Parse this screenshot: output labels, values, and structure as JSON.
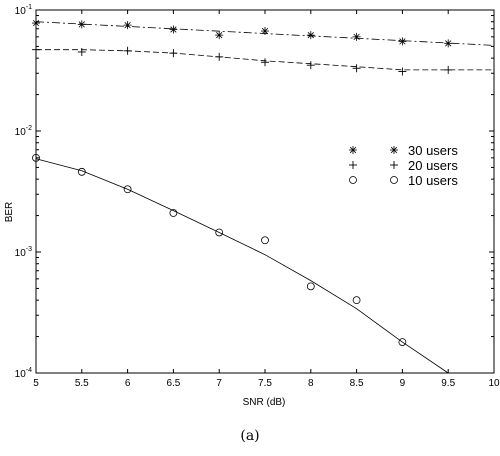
{
  "caption": "(a)",
  "chart_data": {
    "type": "line",
    "xlabel": "SNR (dB)",
    "ylabel": "BER",
    "xlim": [
      5,
      10
    ],
    "ylim": [
      0.0001,
      0.1
    ],
    "yscale": "log",
    "x_ticks": [
      "5",
      "5.5",
      "6",
      "6.5",
      "7",
      "7.5",
      "8",
      "8.5",
      "9",
      "9.5",
      "10"
    ],
    "y_ticks": [
      {
        "base": "10",
        "exp": "-4"
      },
      {
        "base": "10",
        "exp": "-3"
      },
      {
        "base": "10",
        "exp": "-2"
      },
      {
        "base": "10",
        "exp": "-1"
      }
    ],
    "grid": false,
    "legend_position": "right",
    "series": [
      {
        "name": "30 users",
        "marker": "asterisk",
        "line_style": "dashdot",
        "x": [
          5,
          5.5,
          6,
          6.5,
          7,
          7.5,
          8,
          8.5,
          9,
          9.5
        ],
        "y": [
          0.078,
          0.076,
          0.075,
          0.069,
          0.062,
          0.067,
          0.062,
          0.06,
          0.055,
          0.053
        ],
        "curve_x": [
          5,
          10
        ],
        "curve_y": [
          0.08,
          0.051
        ]
      },
      {
        "name": "20 users",
        "marker": "plus",
        "line_style": "dashed",
        "x": [
          5,
          5.5,
          6,
          6.5,
          7,
          7.5,
          8,
          8.5,
          9,
          9.5
        ],
        "y": [
          0.047,
          0.045,
          0.046,
          0.044,
          0.041,
          0.037,
          0.035,
          0.033,
          0.031,
          0.032
        ],
        "curve_x": [
          5,
          5.5,
          6,
          6.5,
          7,
          7.5,
          8,
          8.5,
          9,
          9.5,
          10
        ],
        "curve_y": [
          0.047,
          0.047,
          0.046,
          0.044,
          0.041,
          0.038,
          0.036,
          0.034,
          0.032,
          0.032,
          0.032
        ]
      },
      {
        "name": "10 users",
        "marker": "circle",
        "line_style": "solid",
        "x": [
          5,
          5.5,
          6,
          6.5,
          7,
          7.5,
          8,
          8.5,
          9
        ],
        "y": [
          0.006,
          0.0046,
          0.0033,
          0.0021,
          0.00145,
          0.00125,
          0.00052,
          0.0004,
          0.00018
        ],
        "curve_x": [
          5,
          5.5,
          6,
          6.5,
          7,
          7.5,
          8,
          8.5,
          9,
          9.5
        ],
        "curve_y": [
          0.0059,
          0.0047,
          0.0033,
          0.0022,
          0.00145,
          0.00095,
          0.00058,
          0.00034,
          0.00018,
          0.0001
        ]
      }
    ]
  }
}
